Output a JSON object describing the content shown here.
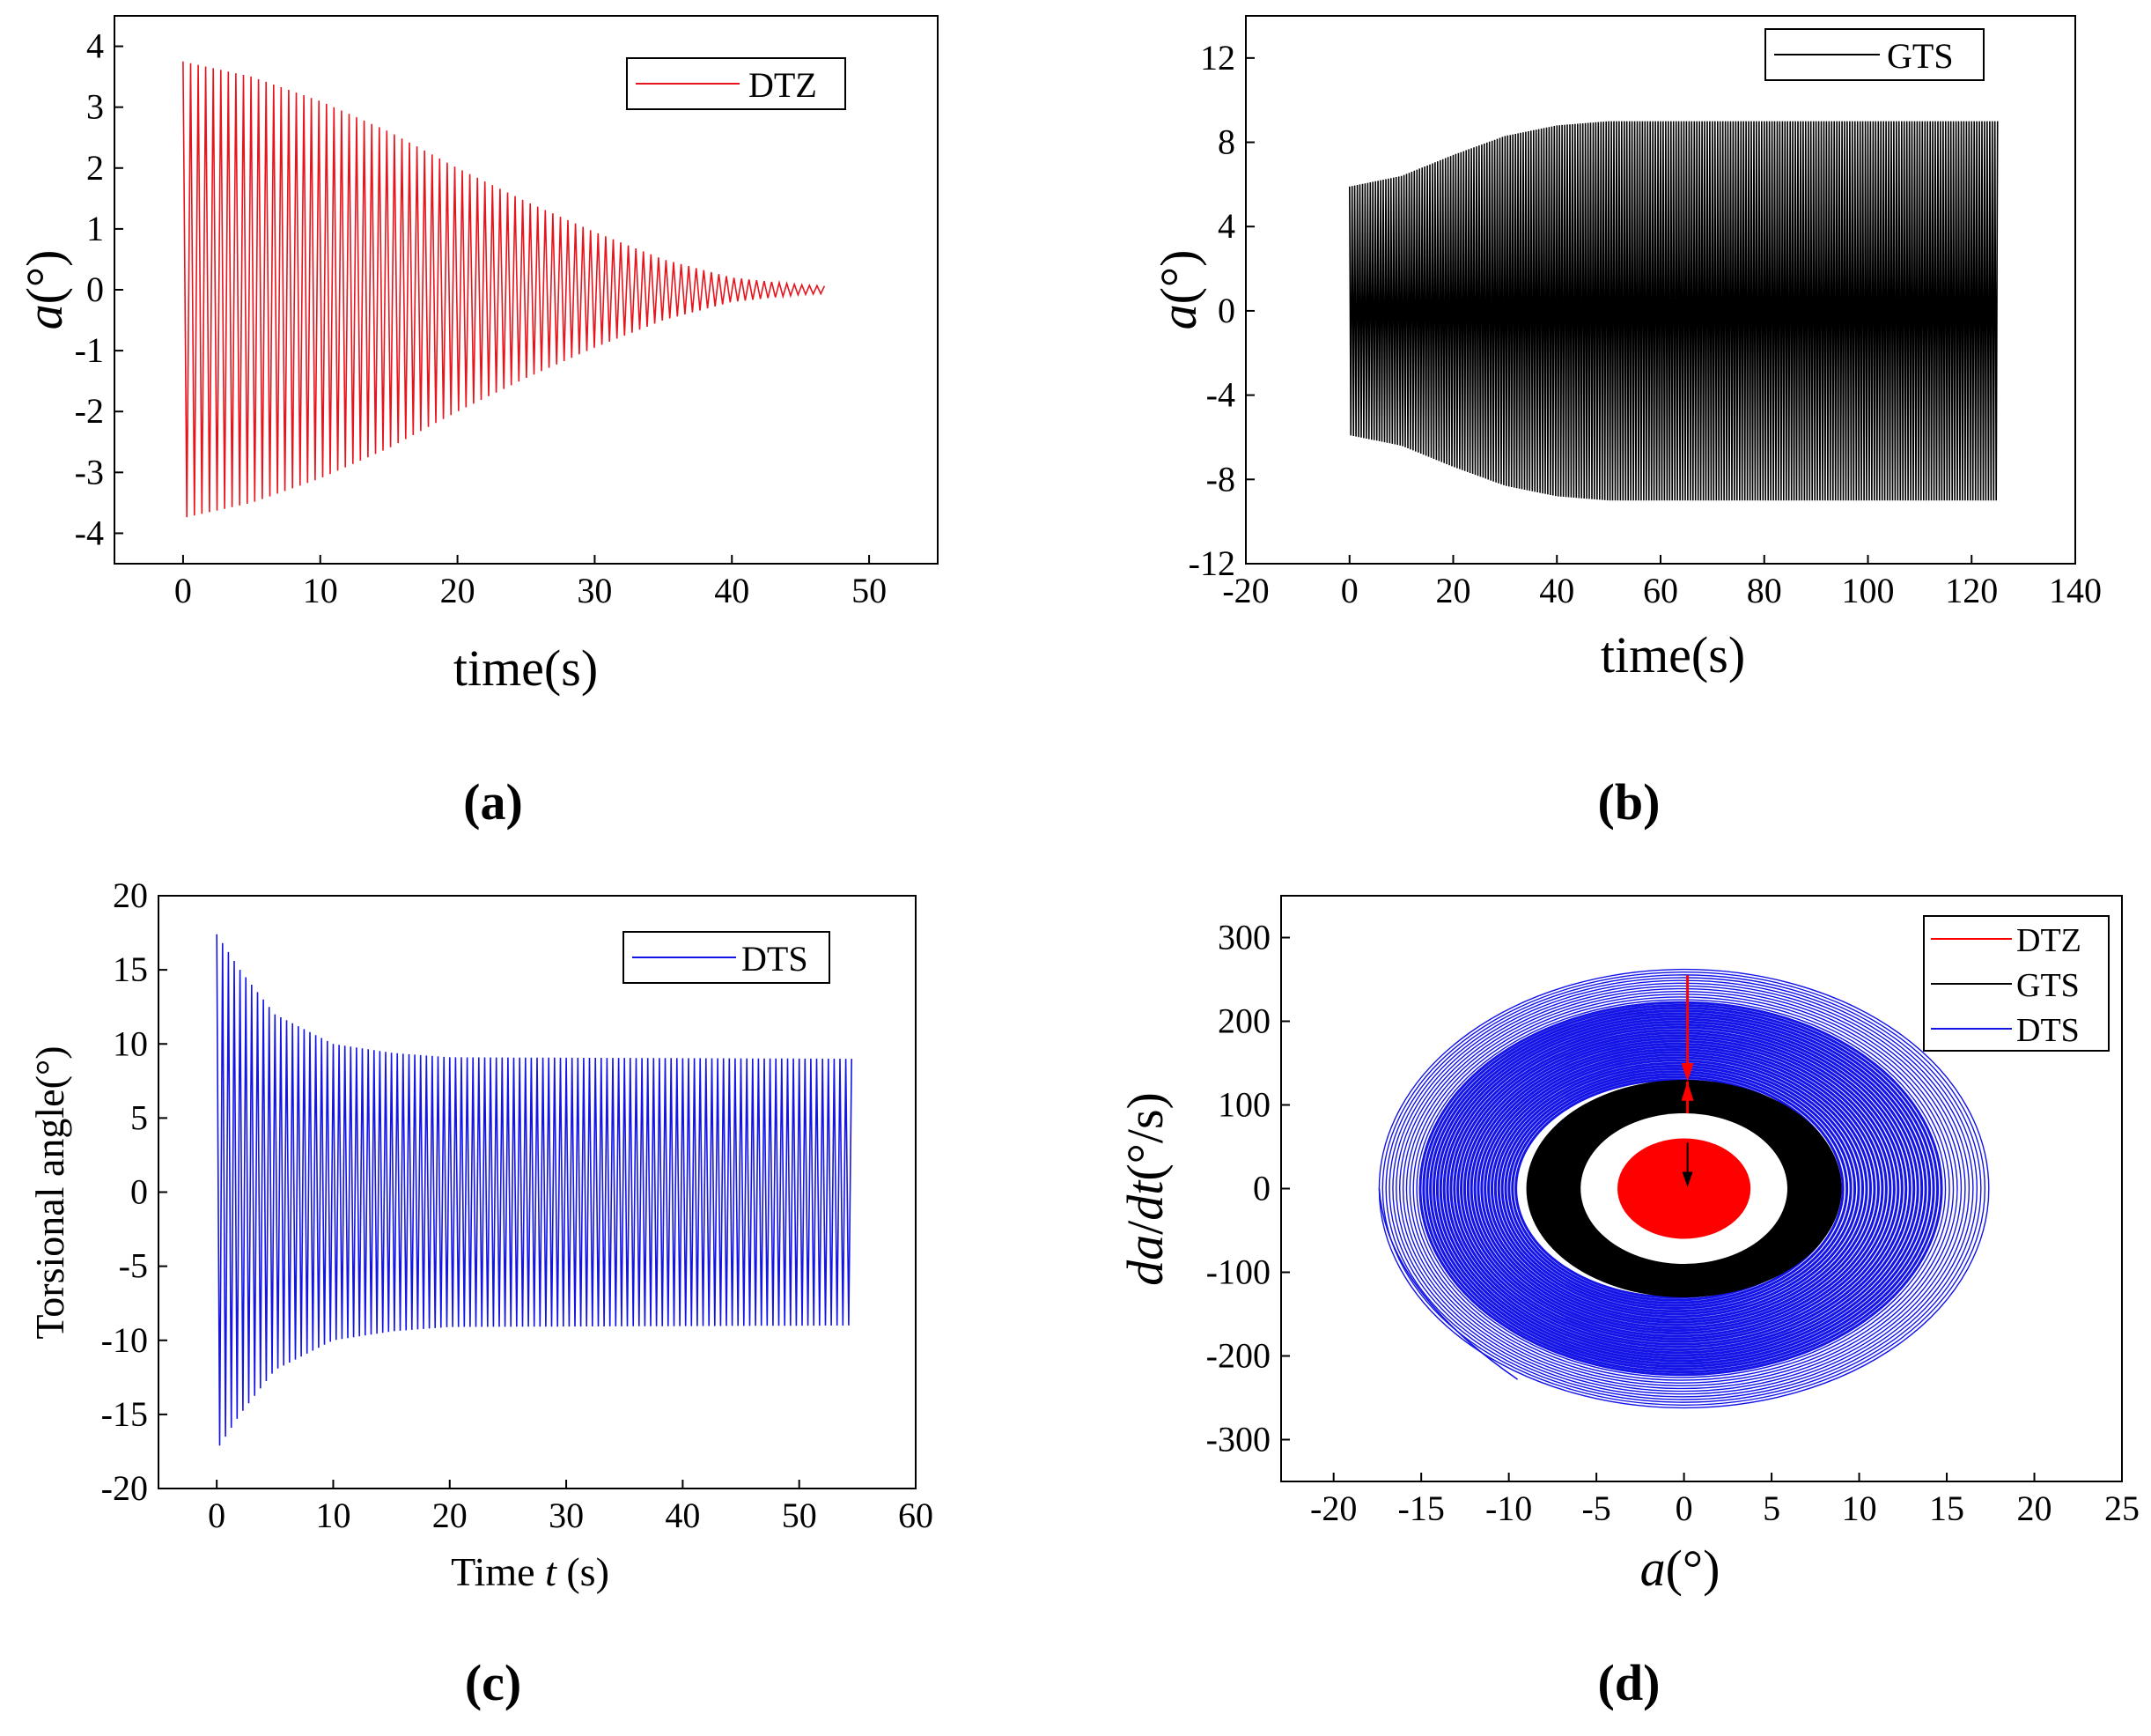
{
  "chart_data": [
    {
      "panel": "(a)",
      "type": "line",
      "title": "",
      "xlabel": "time(s)",
      "ylabel": "a(°)",
      "xlim": [
        -5,
        55
      ],
      "ylim": [
        -4.5,
        4.5
      ],
      "xticks": [
        "0",
        "10",
        "20",
        "30",
        "40",
        "50"
      ],
      "yticks": [
        "-4",
        "-3",
        "-2",
        "-1",
        "0",
        "1",
        "2",
        "3",
        "4"
      ],
      "legend": "top-right",
      "series": [
        {
          "name": "DTZ",
          "color": "#e8141c",
          "description": "decaying oscillation",
          "x_range": [
            0,
            47
          ],
          "envelope_x": [
            0,
            5,
            10,
            15,
            20,
            25,
            30,
            35,
            40,
            45,
            47
          ],
          "envelope_y": [
            3.75,
            3.5,
            3.1,
            2.6,
            2.0,
            1.45,
            0.95,
            0.5,
            0.2,
            0.08,
            0.06
          ],
          "oscillation_period": 0.55
        }
      ]
    },
    {
      "panel": "(b)",
      "type": "line",
      "title": "",
      "xlabel": "time(s)",
      "ylabel": "a(°)",
      "xlim": [
        -20,
        140
      ],
      "ylim": [
        -12,
        14
      ],
      "xticks": [
        "-20",
        "0",
        "20",
        "40",
        "60",
        "80",
        "100",
        "120",
        "140"
      ],
      "yticks": [
        "-12",
        "-8",
        "-4",
        "0",
        "4",
        "8",
        "12"
      ],
      "legend": "top-right",
      "series": [
        {
          "name": "GTS",
          "color": "#000000",
          "description": "growing oscillation to limit cycle",
          "x_range": [
            0,
            125
          ],
          "envelope_x": [
            0,
            10,
            20,
            30,
            40,
            50,
            125
          ],
          "envelope_y": [
            5.9,
            6.4,
            7.4,
            8.3,
            8.8,
            9.0,
            9.0
          ],
          "oscillation_period": 0.5
        }
      ]
    },
    {
      "panel": "(c)",
      "type": "line",
      "title": "",
      "xlabel": "Time t (s)",
      "ylabel": "Torsional angle(°)",
      "xlim": [
        -5,
        60
      ],
      "ylim": [
        -20,
        20
      ],
      "xticks": [
        "0",
        "10",
        "20",
        "30",
        "40",
        "50",
        "60"
      ],
      "yticks": [
        "-20",
        "-15",
        "-10",
        "-5",
        "0",
        "5",
        "10",
        "15",
        "20"
      ],
      "legend": "top-right",
      "series": [
        {
          "name": "DTS",
          "color": "#1414e6",
          "description": "decaying oscillation to limit cycle",
          "x_range": [
            0,
            54.5
          ],
          "envelope_x": [
            0,
            2,
            5,
            10,
            15,
            20,
            54.5
          ],
          "envelope_y": [
            17.4,
            15.0,
            12.0,
            10.0,
            9.4,
            9.1,
            9.0
          ],
          "oscillation_period": 0.5
        }
      ]
    },
    {
      "panel": "(d)",
      "type": "line",
      "title": "",
      "xlabel": "a(°)",
      "ylabel": "da/dt(°/s)",
      "xlim": [
        -23,
        25
      ],
      "ylim": [
        -350,
        350
      ],
      "xticks": [
        "-20",
        "-15",
        "-10",
        "-5",
        "0",
        "5",
        "10",
        "15",
        "20",
        "25"
      ],
      "yticks": [
        "-300",
        "-200",
        "-100",
        "0",
        "100",
        "200",
        "300"
      ],
      "legend": "top-right",
      "series": [
        {
          "name": "DTZ",
          "color": "#ff0000",
          "description": "phase trajectory spiralling into origin",
          "start": [
            0.2,
            255
          ],
          "amplitude_range": [
            0,
            3.8
          ],
          "rate_range": [
            0,
            60
          ]
        },
        {
          "name": "GTS",
          "color": "#000000",
          "description": "phase trajectory filling band between inner and outer cycles",
          "amplitude_range": [
            5.9,
            9.0
          ],
          "rate_range": [
            90,
            130
          ]
        },
        {
          "name": "DTS",
          "color": "#1414e6",
          "description": "phase trajectory spiralling inward from outer orbit",
          "start": [
            -9.5,
            -228
          ],
          "amplitude_range": [
            9.0,
            17.4
          ],
          "rate_range": [
            130,
            262
          ]
        }
      ]
    }
  ],
  "captions": {
    "a": "(a)",
    "b": "(b)",
    "c": "(c)",
    "d": "(d)"
  },
  "labels": {
    "a_ylabel_var": "a",
    "a_ylabel_unit": "(°)",
    "b_ylabel_var": "a",
    "b_ylabel_unit": "(°)",
    "c_xlabel_pre": "Time ",
    "c_xlabel_var": "t",
    "c_xlabel_post": " (s)",
    "d_xlabel_var": "a",
    "d_xlabel_unit": "(°)",
    "d_ylabel_var1": "da",
    "d_ylabel_slash": "/",
    "d_ylabel_var2": "dt",
    "d_ylabel_unit": "(°/s)"
  }
}
